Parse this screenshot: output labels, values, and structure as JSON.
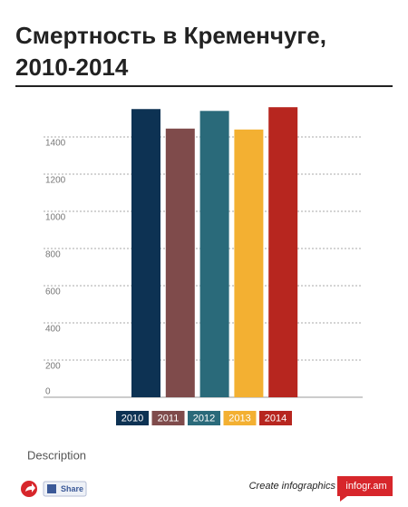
{
  "chart_data": {
    "type": "bar",
    "title": "Смертность в Кременчуге,",
    "subtitle": "2010-2014",
    "categories": [
      "2010",
      "2011",
      "2012",
      "2013",
      "2014"
    ],
    "values": [
      1550,
      1445,
      1540,
      1440,
      1560
    ],
    "colors": [
      "#0d3253",
      "#7f4b4b",
      "#2a6a7a",
      "#f3b032",
      "#b7261f"
    ],
    "ylim": [
      0,
      1600
    ],
    "yticks": [
      0,
      200,
      400,
      600,
      800,
      1000,
      1200,
      1400
    ],
    "grid": true
  },
  "footer": {
    "description": "Description",
    "share": "Share",
    "create": "Create infographics",
    "brand": "infogr.am"
  }
}
